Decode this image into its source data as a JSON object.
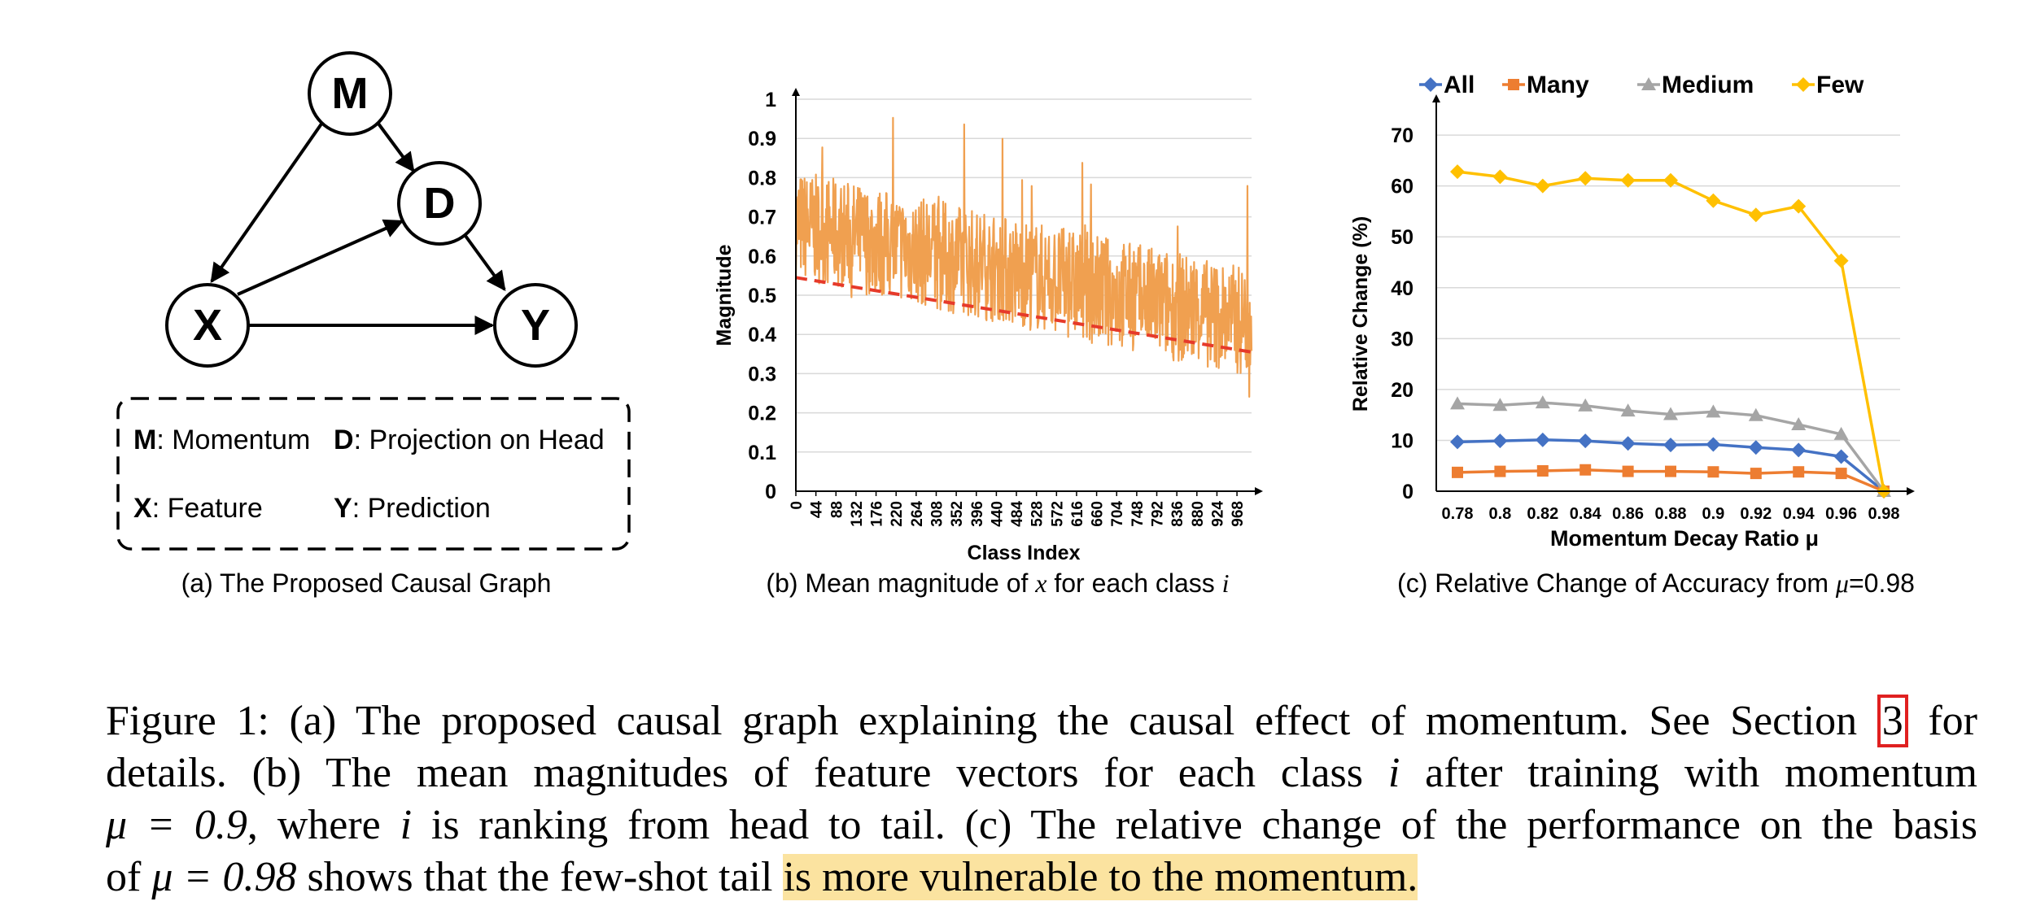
{
  "panel_a": {
    "nodes": {
      "m": "M",
      "d": "D",
      "x": "X",
      "y": "Y"
    },
    "legend": {
      "m_key": "M",
      "m_text": ": Momentum",
      "d_key": "D",
      "d_text": ": Projection on Head",
      "x_key": "X",
      "x_text": ": Feature",
      "y_key": "Y",
      "y_text": ": Prediction"
    },
    "caption": "(a) The Proposed Causal Graph"
  },
  "panel_b": {
    "caption_pre": "(b) Mean magnitude of ",
    "caption_var1": "x",
    "caption_mid": " for each class ",
    "caption_var2": "i"
  },
  "panel_c": {
    "caption_pre": "(c) Relative Change of Accuracy from ",
    "caption_var": "μ",
    "caption_post": "=0.98"
  },
  "chart_data": [
    {
      "type": "line",
      "title": "Mean magnitude of x for each class i",
      "xlabel": "Class Index",
      "ylabel": "Magnitude",
      "ylim": [
        0,
        1
      ],
      "yticks": [
        "0",
        "0.1",
        "0.2",
        "0.3",
        "0.4",
        "0.5",
        "0.6",
        "0.7",
        "0.8",
        "0.9",
        "1"
      ],
      "xticks": [
        "0",
        "44",
        "88",
        "132",
        "176",
        "220",
        "264",
        "308",
        "352",
        "396",
        "440",
        "484",
        "528",
        "572",
        "616",
        "660",
        "704",
        "748",
        "792",
        "836",
        "880",
        "924",
        "968"
      ],
      "xlim": [
        0,
        1000
      ],
      "series": [
        {
          "name": "Magnitude",
          "color": "#f0a050",
          "trend_start": 0.68,
          "trend_end": 0.43,
          "noise_amplitude": 0.14,
          "n_points": 1000,
          "seed": 7
        },
        {
          "name": "Trend",
          "color": "#e63a2a",
          "style": "dashed",
          "x": [
            0,
            1000
          ],
          "values": [
            0.545,
            0.355
          ]
        }
      ],
      "grid": true
    },
    {
      "type": "line",
      "title": "Relative Change of Accuracy from μ=0.98",
      "xlabel": "Momentum Decay Ratio μ",
      "ylabel": "Relative Change (%)",
      "ylim": [
        0,
        70
      ],
      "yticks": [
        "0",
        "10",
        "20",
        "30",
        "40",
        "50",
        "60",
        "70"
      ],
      "categories": [
        "0.78",
        "0.8",
        "0.82",
        "0.84",
        "0.86",
        "0.88",
        "0.9",
        "0.92",
        "0.94",
        "0.96",
        "0.98"
      ],
      "legend_position": "top",
      "grid": true,
      "series": [
        {
          "name": "All",
          "color": "#4472c4",
          "marker": "diamond",
          "values": [
            9.7,
            9.9,
            10.1,
            9.9,
            9.4,
            9.1,
            9.2,
            8.6,
            8.1,
            6.8,
            0
          ]
        },
        {
          "name": "Many",
          "color": "#ed7d31",
          "marker": "square",
          "values": [
            3.7,
            3.9,
            4.0,
            4.2,
            3.9,
            3.9,
            3.8,
            3.5,
            3.8,
            3.5,
            0
          ]
        },
        {
          "name": "Medium",
          "color": "#a5a5a5",
          "marker": "triangle",
          "values": [
            17.2,
            16.9,
            17.4,
            16.8,
            15.8,
            15.1,
            15.6,
            14.9,
            13.1,
            11.2,
            0
          ]
        },
        {
          "name": "Few",
          "color": "#ffc000",
          "marker": "diamond",
          "values": [
            62.8,
            61.8,
            60.0,
            61.5,
            61.1,
            61.1,
            57.1,
            54.3,
            56.0,
            45.3,
            0
          ]
        }
      ]
    }
  ],
  "caption": {
    "l1_a": "Figure 1: (a) The proposed causal graph explaining the causal effect of momentum. See Section ",
    "l1_ref": "3",
    "l1_b": " for",
    "l2_a": "details. (b) The mean magnitudes of feature vectors for each class ",
    "l2_var": "i",
    "l2_b": " after training with momentum",
    "l3_a": "μ = 0.9",
    "l3_b": ", where ",
    "l3_var": "i",
    "l3_c": " is ranking from head to tail. (c) The relative change of the performance on the basis",
    "l4_a": "of ",
    "l4_math": "μ = 0.98",
    "l4_b": " shows that the few-shot tail ",
    "l4_hl": "is more vulnerable to the momentum."
  }
}
